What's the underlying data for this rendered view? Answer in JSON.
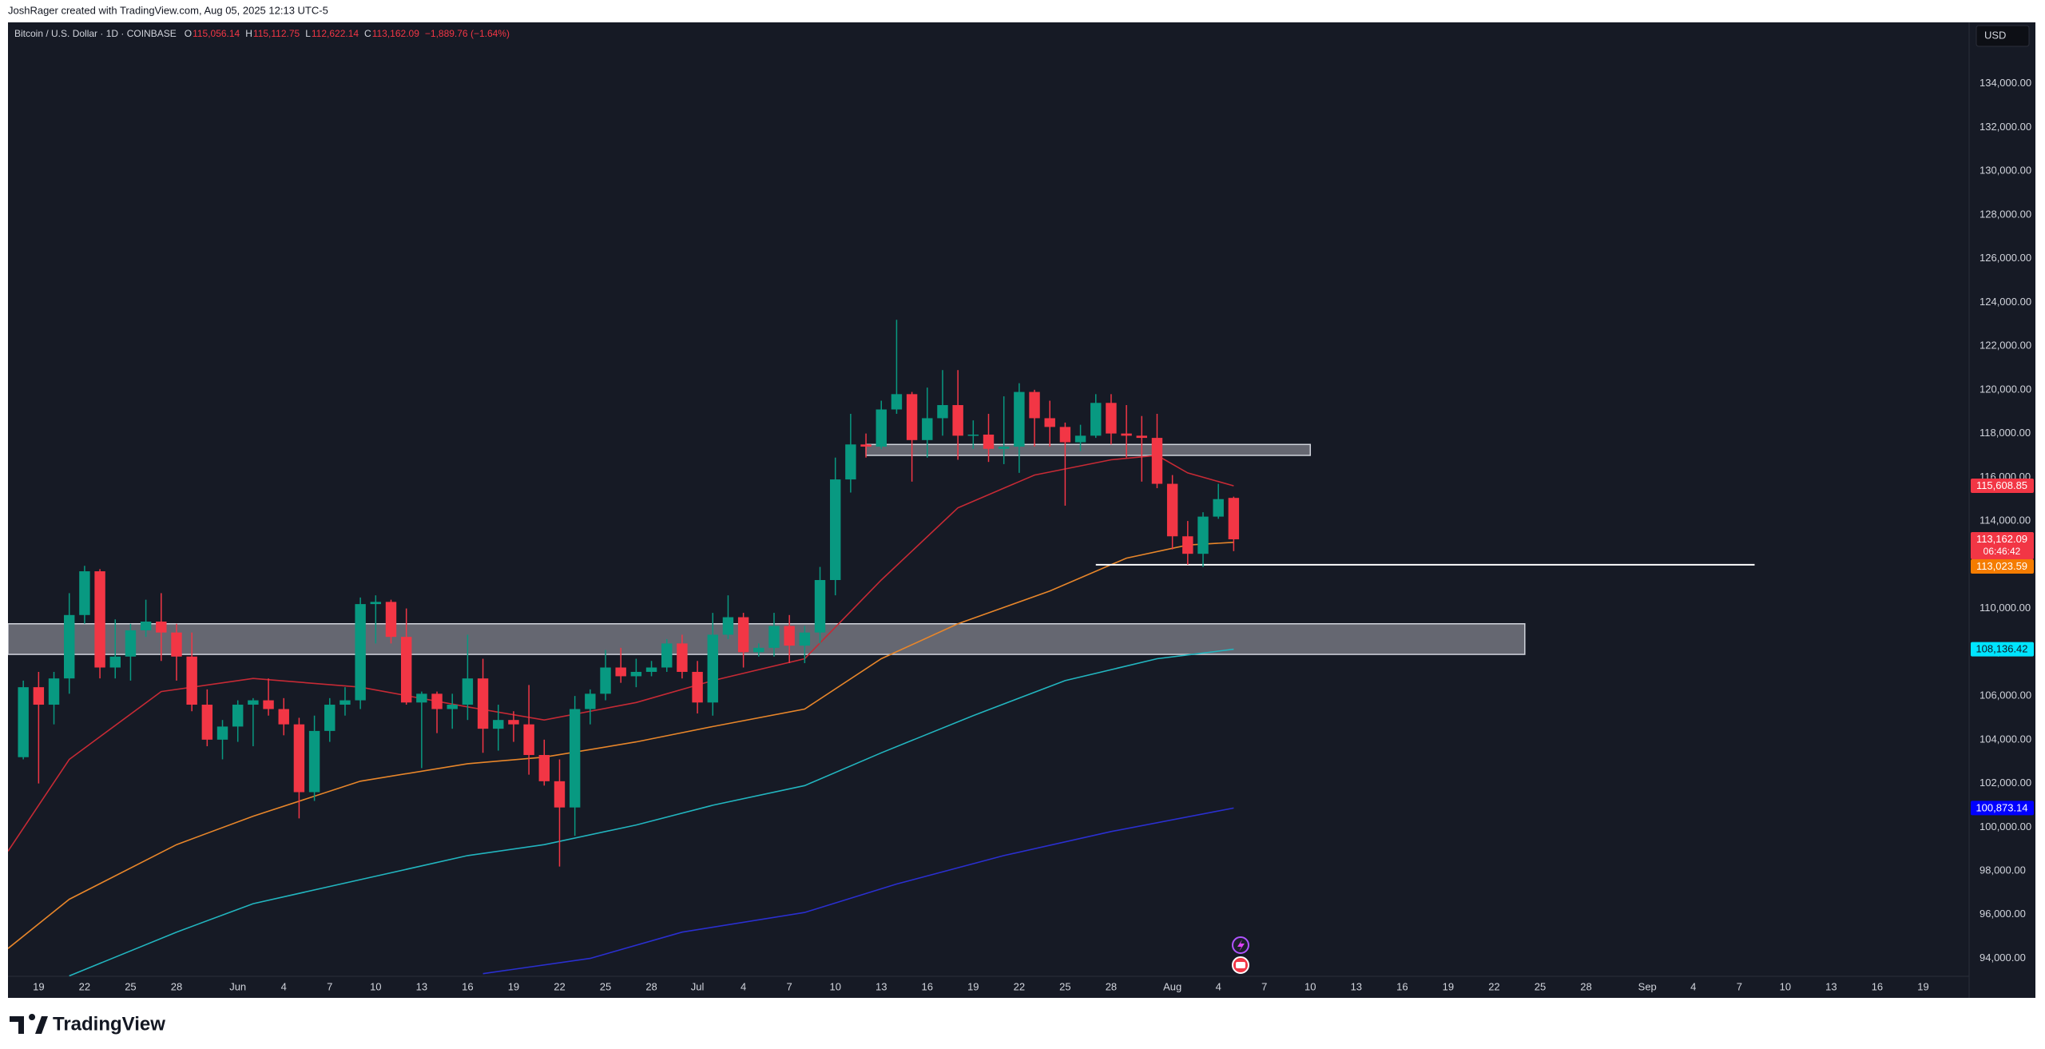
{
  "page": {
    "credit": "JoshRager created with TradingView.com, Aug 05, 2025 12:13 UTC-5",
    "brand": "TradingView"
  },
  "chart_data": {
    "type": "candlestick",
    "symbol": "Bitcoin / U.S. Dollar · 1D · COINBASE",
    "ohlc_legend": [
      {
        "key": "O",
        "value": "115,056.14"
      },
      {
        "key": "H",
        "value": "115,112.75"
      },
      {
        "key": "L",
        "value": "112,622.14"
      },
      {
        "key": "C",
        "value": "113,162.09"
      }
    ],
    "change": "−1,889.76 (−1.64%)",
    "currency": "USD",
    "up_color": "#089981",
    "down_color": "#f23645",
    "grid": false,
    "x": [
      "2025-05-18",
      "2025-05-19",
      "2025-05-20",
      "2025-05-21",
      "2025-05-22",
      "2025-05-23",
      "2025-05-24",
      "2025-05-25",
      "2025-05-26",
      "2025-05-27",
      "2025-05-28",
      "2025-05-29",
      "2025-05-30",
      "2025-05-31",
      "2025-06-01",
      "2025-06-02",
      "2025-06-03",
      "2025-06-04",
      "2025-06-05",
      "2025-06-06",
      "2025-06-07",
      "2025-06-08",
      "2025-06-09",
      "2025-06-10",
      "2025-06-11",
      "2025-06-12",
      "2025-06-13",
      "2025-06-14",
      "2025-06-15",
      "2025-06-16",
      "2025-06-17",
      "2025-06-18",
      "2025-06-19",
      "2025-06-20",
      "2025-06-21",
      "2025-06-22",
      "2025-06-23",
      "2025-06-24",
      "2025-06-25",
      "2025-06-26",
      "2025-06-27",
      "2025-06-28",
      "2025-06-29",
      "2025-06-30",
      "2025-07-01",
      "2025-07-02",
      "2025-07-03",
      "2025-07-04",
      "2025-07-05",
      "2025-07-06",
      "2025-07-07",
      "2025-07-08",
      "2025-07-09",
      "2025-07-10",
      "2025-07-11",
      "2025-07-12",
      "2025-07-13",
      "2025-07-14",
      "2025-07-15",
      "2025-07-16",
      "2025-07-17",
      "2025-07-18",
      "2025-07-19",
      "2025-07-20",
      "2025-07-21",
      "2025-07-22",
      "2025-07-23",
      "2025-07-24",
      "2025-07-25",
      "2025-07-26",
      "2025-07-27",
      "2025-07-28",
      "2025-07-29",
      "2025-07-30",
      "2025-07-31",
      "2025-08-01",
      "2025-08-02",
      "2025-08-03",
      "2025-08-04",
      "2025-08-05"
    ],
    "open": [
      103200,
      106400,
      105600,
      106800,
      109700,
      111700,
      107300,
      107800,
      109000,
      109400,
      108900,
      107800,
      105600,
      104000,
      104600,
      105600,
      105800,
      105400,
      104700,
      101600,
      104400,
      105600,
      105800,
      110200,
      110300,
      108700,
      105700,
      106100,
      105400,
      105600,
      106800,
      104500,
      104900,
      104700,
      103300,
      102100,
      100900,
      105400,
      106100,
      107300,
      106900,
      107100,
      107300,
      108400,
      107100,
      105700,
      108800,
      109600,
      108000,
      108200,
      109200,
      108300,
      108900,
      111300,
      115900,
      117500,
      117400,
      119100,
      119800,
      117700,
      118700,
      119300,
      117900,
      117950,
      117300,
      117400,
      119900,
      118700,
      118300,
      117600,
      117900,
      119400,
      118000,
      117900,
      117800,
      115700,
      113300,
      112500,
      114200,
      115056.14
    ],
    "high": [
      106700,
      107100,
      107100,
      110700,
      111950,
      111800,
      109500,
      109300,
      110400,
      110700,
      109300,
      108900,
      106300,
      104900,
      105800,
      105900,
      106800,
      105900,
      105000,
      105100,
      105900,
      106400,
      110500,
      110600,
      110400,
      110000,
      106200,
      106200,
      106100,
      108800,
      107700,
      105600,
      105300,
      106500,
      104000,
      103100,
      106000,
      106300,
      108100,
      108200,
      107700,
      107600,
      108600,
      108800,
      107600,
      109800,
      110600,
      109800,
      108400,
      109800,
      109700,
      109200,
      111900,
      116900,
      118900,
      118000,
      119500,
      123200,
      119900,
      120100,
      120900,
      120900,
      118600,
      118900,
      119700,
      120300,
      120000,
      119500,
      118500,
      118400,
      119800,
      119800,
      119300,
      118800,
      118900,
      116100,
      114000,
      114400,
      115700,
      115112.75
    ],
    "low": [
      103100,
      102000,
      104700,
      106100,
      109300,
      106800,
      106800,
      106700,
      108700,
      107600,
      106700,
      105300,
      103700,
      103100,
      103900,
      103700,
      105100,
      104200,
      100400,
      101200,
      103900,
      105100,
      105400,
      108400,
      108400,
      105600,
      102700,
      104300,
      104500,
      104900,
      103400,
      103500,
      103900,
      102400,
      101900,
      98200,
      99600,
      104700,
      105800,
      106600,
      106400,
      106900,
      107100,
      106800,
      105200,
      105100,
      108600,
      107300,
      107800,
      107800,
      107500,
      107500,
      108400,
      110600,
      115300,
      116900,
      117300,
      118900,
      115800,
      116900,
      117900,
      116800,
      117300,
      116700,
      116600,
      116200,
      117400,
      117400,
      114700,
      117200,
      117800,
      117500,
      116900,
      115800,
      115500,
      112700,
      112000,
      111900,
      114100,
      112622.14
    ],
    "close": [
      106400,
      105600,
      106800,
      109700,
      111700,
      107300,
      107800,
      109000,
      109400,
      108900,
      107800,
      105600,
      104000,
      104600,
      105600,
      105800,
      105400,
      104700,
      101600,
      104400,
      105600,
      105800,
      110200,
      110300,
      108700,
      105700,
      106100,
      105400,
      105600,
      106800,
      104500,
      104900,
      104700,
      103300,
      102100,
      100900,
      105400,
      106100,
      107300,
      106900,
      107100,
      107300,
      108400,
      107100,
      105700,
      108800,
      109600,
      108000,
      108200,
      109200,
      108300,
      108900,
      111300,
      115900,
      117500,
      117400,
      119100,
      119800,
      117700,
      118700,
      119300,
      117900,
      117950,
      117300,
      117400,
      119900,
      118700,
      118300,
      117600,
      117900,
      119400,
      118000,
      117900,
      117800,
      115700,
      113300,
      112500,
      114200,
      115000,
      113162.09
    ],
    "overlays": [
      {
        "color": "#c62a35",
        "x": [
          "2025-05-17",
          "2025-05-21",
          "2025-05-27",
          "2025-06-02",
          "2025-06-09",
          "2025-06-16",
          "2025-06-21",
          "2025-06-27",
          "2025-07-02",
          "2025-07-08",
          "2025-07-13",
          "2025-07-18",
          "2025-07-23",
          "2025-07-28",
          "2025-07-31",
          "2025-08-02",
          "2025-08-05"
        ],
        "values": [
          98900,
          103100,
          106200,
          106800,
          106400,
          105500,
          104900,
          105700,
          106700,
          107700,
          111300,
          114600,
          116100,
          116800,
          117000,
          116200,
          115608.85
        ]
      },
      {
        "color": "#e8862a",
        "x": [
          "2025-05-17",
          "2025-05-21",
          "2025-05-28",
          "2025-06-02",
          "2025-06-09",
          "2025-06-16",
          "2025-06-21",
          "2025-06-27",
          "2025-07-02",
          "2025-07-08",
          "2025-07-13",
          "2025-07-18",
          "2025-07-24",
          "2025-07-29",
          "2025-08-02",
          "2025-08-05"
        ],
        "values": [
          94450,
          96700,
          99200,
          100500,
          102100,
          102900,
          103200,
          103900,
          104600,
          105400,
          107700,
          109300,
          110800,
          112300,
          112900,
          113023.59
        ]
      },
      {
        "color": "#22b5bf",
        "x": [
          "2025-05-21",
          "2025-05-28",
          "2025-06-02",
          "2025-06-09",
          "2025-06-16",
          "2025-06-21",
          "2025-06-27",
          "2025-07-02",
          "2025-07-08",
          "2025-07-13",
          "2025-07-19",
          "2025-07-25",
          "2025-07-31",
          "2025-08-05"
        ],
        "values": [
          93200,
          95200,
          96500,
          97600,
          98700,
          99200,
          100100,
          101000,
          101900,
          103400,
          105100,
          106700,
          107700,
          108136.42
        ]
      },
      {
        "color": "#2a2fd0",
        "x": [
          "2025-06-17",
          "2025-06-24",
          "2025-06-30",
          "2025-07-08",
          "2025-07-14",
          "2025-07-21",
          "2025-07-28",
          "2025-08-05"
        ],
        "values": [
          93300,
          94000,
          95200,
          96100,
          97400,
          98700,
          99800,
          100873.14
        ]
      }
    ],
    "zones": [
      {
        "from": "2025-05-17",
        "to": "2025-08-24",
        "low": 107900,
        "high": 109300
      },
      {
        "from": "2025-07-12",
        "to": "2025-08-10",
        "low": 117000,
        "high": 117500
      }
    ],
    "levels": [
      {
        "from": "2025-07-27",
        "to": "2025-09-08",
        "value": 112000
      }
    ],
    "price_tags": [
      {
        "value": 115608.85,
        "label": "115,608.85",
        "color": "#f23645",
        "text_color": "#ffffff"
      },
      {
        "value": 113162.09,
        "label": "113,162.09",
        "countdown": "06:46:42",
        "color": "#f23645",
        "text_color": "#ffffff"
      },
      {
        "value": 113023.59,
        "label": "113,023.59",
        "color": "#f57c00",
        "text_color": "#ffffff"
      },
      {
        "value": 108136.42,
        "label": "108,136.42",
        "color": "#00e5ff",
        "text_color": "#131722"
      },
      {
        "value": 100873.14,
        "label": "100,873.14",
        "color": "#0000ff",
        "text_color": "#ffffff"
      }
    ],
    "xlim": [
      "2025-05-17",
      "2025-09-22"
    ],
    "xticks": [
      {
        "value": "2025-05-19",
        "label": "19"
      },
      {
        "value": "2025-05-22",
        "label": "22"
      },
      {
        "value": "2025-05-25",
        "label": "25"
      },
      {
        "value": "2025-05-28",
        "label": "28"
      },
      {
        "value": "2025-06-01",
        "label": "Jun"
      },
      {
        "value": "2025-06-04",
        "label": "4"
      },
      {
        "value": "2025-06-07",
        "label": "7"
      },
      {
        "value": "2025-06-10",
        "label": "10"
      },
      {
        "value": "2025-06-13",
        "label": "13"
      },
      {
        "value": "2025-06-16",
        "label": "16"
      },
      {
        "value": "2025-06-19",
        "label": "19"
      },
      {
        "value": "2025-06-22",
        "label": "22"
      },
      {
        "value": "2025-06-25",
        "label": "25"
      },
      {
        "value": "2025-06-28",
        "label": "28"
      },
      {
        "value": "2025-07-01",
        "label": "Jul"
      },
      {
        "value": "2025-07-04",
        "label": "4"
      },
      {
        "value": "2025-07-07",
        "label": "7"
      },
      {
        "value": "2025-07-10",
        "label": "10"
      },
      {
        "value": "2025-07-13",
        "label": "13"
      },
      {
        "value": "2025-07-16",
        "label": "16"
      },
      {
        "value": "2025-07-19",
        "label": "19"
      },
      {
        "value": "2025-07-22",
        "label": "22"
      },
      {
        "value": "2025-07-25",
        "label": "25"
      },
      {
        "value": "2025-07-28",
        "label": "28"
      },
      {
        "value": "2025-08-01",
        "label": "Aug"
      },
      {
        "value": "2025-08-04",
        "label": "4"
      },
      {
        "value": "2025-08-07",
        "label": "7"
      },
      {
        "value": "2025-08-10",
        "label": "10"
      },
      {
        "value": "2025-08-13",
        "label": "13"
      },
      {
        "value": "2025-08-16",
        "label": "16"
      },
      {
        "value": "2025-08-19",
        "label": "19"
      },
      {
        "value": "2025-08-22",
        "label": "22"
      },
      {
        "value": "2025-08-25",
        "label": "25"
      },
      {
        "value": "2025-08-28",
        "label": "28"
      },
      {
        "value": "2025-09-01",
        "label": "Sep"
      },
      {
        "value": "2025-09-04",
        "label": "4"
      },
      {
        "value": "2025-09-07",
        "label": "7"
      },
      {
        "value": "2025-09-10",
        "label": "10"
      },
      {
        "value": "2025-09-13",
        "label": "13"
      },
      {
        "value": "2025-09-16",
        "label": "16"
      },
      {
        "value": "2025-09-19",
        "label": "19"
      }
    ],
    "ylim": [
      93180,
      136800
    ],
    "yticks": [
      {
        "value": 94000,
        "label": "94,000.00"
      },
      {
        "value": 96000,
        "label": "96,000.00"
      },
      {
        "value": 98000,
        "label": "98,000.00"
      },
      {
        "value": 100000,
        "label": "100,000.00"
      },
      {
        "value": 102000,
        "label": "102,000.00"
      },
      {
        "value": 104000,
        "label": "104,000.00"
      },
      {
        "value": 106000,
        "label": "106,000.00"
      },
      {
        "value": 108000,
        "label": "108,000.00"
      },
      {
        "value": 110000,
        "label": "110,000.00"
      },
      {
        "value": 112000,
        "label": "112,000.00"
      },
      {
        "value": 114000,
        "label": "114,000.00"
      },
      {
        "value": 116000,
        "label": "116,000.00"
      },
      {
        "value": 118000,
        "label": "118,000.00"
      },
      {
        "value": 120000,
        "label": "120,000.00"
      },
      {
        "value": 122000,
        "label": "122,000.00"
      },
      {
        "value": 124000,
        "label": "124,000.00"
      },
      {
        "value": 126000,
        "label": "126,000.00"
      },
      {
        "value": 128000,
        "label": "128,000.00"
      },
      {
        "value": 130000,
        "label": "130,000.00"
      },
      {
        "value": 132000,
        "label": "132,000.00"
      },
      {
        "value": 134000,
        "label": "134,000.00"
      }
    ]
  }
}
